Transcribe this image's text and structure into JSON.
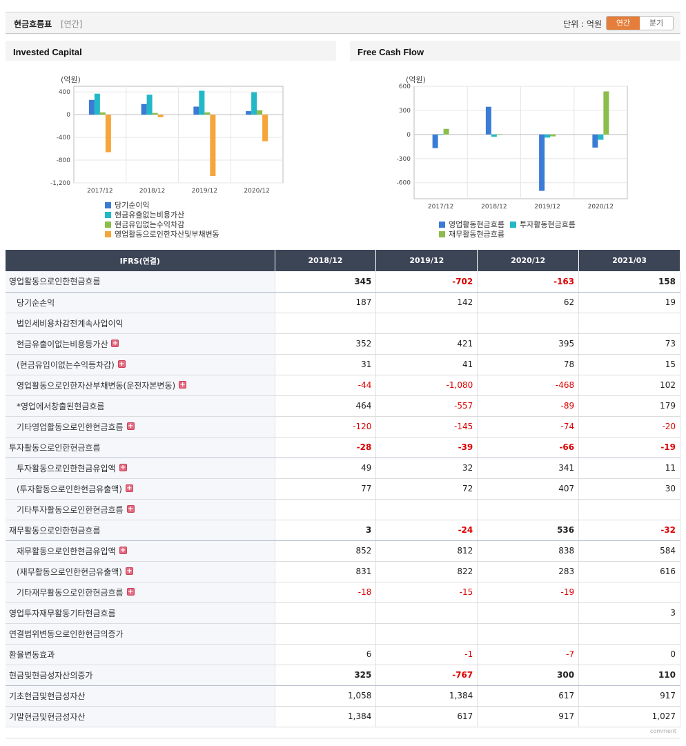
{
  "header": {
    "title": "현금흐름표",
    "subtitle": "[연간]",
    "unit": "단위 : 억원",
    "toggle_annual": "연간",
    "toggle_quarter": "분기"
  },
  "left_panel_title": "Invested Capital",
  "right_panel_title": "Free Cash Flow",
  "colors": {
    "blue": "#3a7bd5",
    "teal": "#22b8c7",
    "green": "#8cbd4a",
    "orange": "#f5a53a",
    "header_bg": "#3c4556",
    "neg": "#dd0000",
    "toggle_on": "#e57e3a"
  },
  "chart_data": [
    {
      "type": "bar",
      "ylabel": "(억원)",
      "categories": [
        "2017/12",
        "2018/12",
        "2019/12",
        "2020/12"
      ],
      "ylim": [
        -1200,
        500
      ],
      "yticks": [
        400,
        0,
        -400,
        -800,
        -1200
      ],
      "ytick_labels": [
        "400",
        "0",
        "-400",
        "-800",
        "-1,200"
      ],
      "series": [
        {
          "name": "당기순이익",
          "color": "#3a7bd5",
          "values": [
            260,
            187,
            142,
            62
          ]
        },
        {
          "name": "현금유출없는비용가산",
          "color": "#22b8c7",
          "values": [
            370,
            352,
            421,
            395
          ]
        },
        {
          "name": "현금유입없는수익차감",
          "color": "#8cbd4a",
          "values": [
            40,
            31,
            41,
            78
          ]
        },
        {
          "name": "영업활동으로인한자산및부채변동",
          "color": "#f5a53a",
          "values": [
            -660,
            -44,
            -1080,
            -468
          ]
        }
      ]
    },
    {
      "type": "bar",
      "ylabel": "(억원)",
      "categories": [
        "2017/12",
        "2018/12",
        "2019/12",
        "2020/12"
      ],
      "ylim": [
        -800,
        600
      ],
      "yticks": [
        600,
        300,
        0,
        -300,
        -600
      ],
      "ytick_labels": [
        "600",
        "300",
        "0",
        "-300",
        "-600"
      ],
      "series": [
        {
          "name": "영업활동현금흐름",
          "color": "#3a7bd5",
          "values": [
            -170,
            345,
            -702,
            -163
          ]
        },
        {
          "name": "투자활동현금흐름",
          "color": "#22b8c7",
          "values": [
            -5,
            -28,
            -39,
            -66
          ]
        },
        {
          "name": "재무활동현금흐름",
          "color": "#8cbd4a",
          "values": [
            70,
            3,
            -24,
            536
          ]
        }
      ]
    }
  ],
  "table": {
    "corner": "IFRS(연결)",
    "columns": [
      "2018/12",
      "2019/12",
      "2020/12",
      "2021/03"
    ],
    "rows": [
      {
        "label": "영업활동으로인한현금흐름",
        "main": true,
        "plus": false,
        "values": [
          "345",
          "-702",
          "-163",
          "158"
        ]
      },
      {
        "label": "당기순손익",
        "main": false,
        "plus": false,
        "values": [
          "187",
          "142",
          "62",
          "19"
        ]
      },
      {
        "label": "법인세비용차감전계속사업이익",
        "main": false,
        "plus": false,
        "values": [
          "",
          "",
          "",
          ""
        ]
      },
      {
        "label": "현금유출이없는비용등가산",
        "main": false,
        "plus": true,
        "values": [
          "352",
          "421",
          "395",
          "73"
        ]
      },
      {
        "label": "(현금유입이없는수익등차감)",
        "main": false,
        "plus": true,
        "values": [
          "31",
          "41",
          "78",
          "15"
        ]
      },
      {
        "label": "영업활동으로인한자산부채변동(운전자본변동)",
        "main": false,
        "plus": true,
        "values": [
          "-44",
          "-1,080",
          "-468",
          "102"
        ]
      },
      {
        "label": "*영업에서창출된현금흐름",
        "main": false,
        "plus": false,
        "values": [
          "464",
          "-557",
          "-89",
          "179"
        ]
      },
      {
        "label": "기타영업활동으로인한현금흐름",
        "main": false,
        "plus": true,
        "values": [
          "-120",
          "-145",
          "-74",
          "-20"
        ]
      },
      {
        "label": "투자활동으로인한현금흐름",
        "main": true,
        "plus": false,
        "values": [
          "-28",
          "-39",
          "-66",
          "-19"
        ]
      },
      {
        "label": "투자활동으로인한현금유입액",
        "main": false,
        "plus": true,
        "values": [
          "49",
          "32",
          "341",
          "11"
        ]
      },
      {
        "label": "(투자활동으로인한현금유출액)",
        "main": false,
        "plus": true,
        "values": [
          "77",
          "72",
          "407",
          "30"
        ]
      },
      {
        "label": "기타투자활동으로인한현금흐름",
        "main": false,
        "plus": true,
        "values": [
          "",
          "",
          "",
          ""
        ]
      },
      {
        "label": "재무활동으로인한현금흐름",
        "main": true,
        "plus": false,
        "values": [
          "3",
          "-24",
          "536",
          "-32"
        ]
      },
      {
        "label": "재무활동으로인한현금유입액",
        "main": false,
        "plus": true,
        "values": [
          "852",
          "812",
          "838",
          "584"
        ]
      },
      {
        "label": "(재무활동으로인한현금유출액)",
        "main": false,
        "plus": true,
        "values": [
          "831",
          "822",
          "283",
          "616"
        ]
      },
      {
        "label": "기타재무활동으로인한현금흐름",
        "main": false,
        "plus": true,
        "values": [
          "-18",
          "-15",
          "-19",
          ""
        ]
      },
      {
        "label": "영업투자재무활동기타현금흐름",
        "main": false,
        "top": true,
        "plus": false,
        "values": [
          "",
          "",
          "",
          "3"
        ]
      },
      {
        "label": "연결범위변동으로인한현금의증가",
        "main": false,
        "top": true,
        "plus": false,
        "values": [
          "",
          "",
          "",
          ""
        ]
      },
      {
        "label": "환율변동효과",
        "main": false,
        "top": true,
        "plus": false,
        "values": [
          "6",
          "-1",
          "-7",
          "0"
        ]
      },
      {
        "label": "현금및현금성자산의증가",
        "main": true,
        "plus": false,
        "values": [
          "325",
          "-767",
          "300",
          "110"
        ]
      },
      {
        "label": "기초현금및현금성자산",
        "main": false,
        "top": true,
        "plus": false,
        "values": [
          "1,058",
          "1,384",
          "617",
          "917"
        ]
      },
      {
        "label": "기말현금및현금성자산",
        "main": false,
        "top": true,
        "plus": false,
        "values": [
          "1,384",
          "617",
          "917",
          "1,027"
        ]
      }
    ]
  },
  "footer_label": "comment"
}
